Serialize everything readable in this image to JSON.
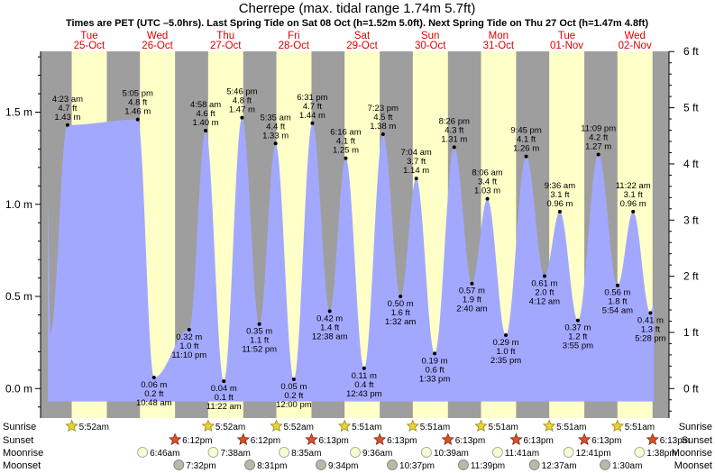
{
  "chart_data": {
    "type": "area",
    "title": "Cherrepe (max. tidal range 1.74m 5.7ft)",
    "subtitle": "Times are PET (UTC –5.0hrs). Last Spring Tide on Sat 08 Oct (h=1.52m 5.0ft). Next Spring Tide on Thu 27 Oct (h=1.47m 4.8ft)",
    "ylabel_left": "m",
    "ylabel_right": "ft",
    "ylim_m": [
      -0.16,
      1.83
    ],
    "left_ticks": [
      {
        "v": 0.0,
        "label": "0.0 m"
      },
      {
        "v": 0.5,
        "label": "0.5 m"
      },
      {
        "v": 1.0,
        "label": "1.0 m"
      },
      {
        "v": 1.5,
        "label": "1.5 m"
      }
    ],
    "right_ticks": [
      {
        "v": 0.0,
        "label": "0 ft"
      },
      {
        "v": 0.3048,
        "label": "1 ft"
      },
      {
        "v": 0.6096,
        "label": "2 ft"
      },
      {
        "v": 0.9144,
        "label": "3 ft"
      },
      {
        "v": 1.2192,
        "label": "4 ft"
      },
      {
        "v": 1.524,
        "label": "5 ft"
      },
      {
        "v": 1.8288,
        "label": "6 ft"
      }
    ],
    "days": [
      {
        "wd": "Tue",
        "date": "25-Oct",
        "t0": 0
      },
      {
        "wd": "Wed",
        "date": "26-Oct",
        "t0": 24
      },
      {
        "wd": "Thu",
        "date": "27-Oct",
        "t0": 48
      },
      {
        "wd": "Fri",
        "date": "28-Oct",
        "t0": 72
      },
      {
        "wd": "Sat",
        "date": "29-Oct",
        "t0": 96
      },
      {
        "wd": "Sun",
        "date": "30-Oct",
        "t0": 120
      },
      {
        "wd": "Mon",
        "date": "31-Oct",
        "t0": 144
      },
      {
        "wd": "Tue",
        "date": "01-Nov",
        "t0": 168
      },
      {
        "wd": "Wed",
        "date": "02-Nov",
        "t0": 192
      }
    ],
    "tides": [
      {
        "type": "high",
        "t": 4.38,
        "time": "4:23 am",
        "ft": "4.7 ft",
        "m": 1.43
      },
      {
        "type": "low",
        "t": 34.8,
        "time": "10:48 am",
        "ft": "0.2 ft",
        "m": 0.06
      },
      {
        "type": "high",
        "t": 29.08,
        "time": "5:05 pm",
        "ft": "4.8 ft",
        "m": 1.46
      },
      {
        "type": "low",
        "t": 47.17,
        "time": "11:10 pm",
        "ft": "1.0 ft",
        "m": 0.32
      },
      {
        "type": "high",
        "t": 52.97,
        "time": "4:58 am",
        "ft": "4.6 ft",
        "m": 1.4
      },
      {
        "type": "low",
        "t": 59.37,
        "time": "11:22 am",
        "ft": "0.1 ft",
        "m": 0.04
      },
      {
        "type": "high",
        "t": 65.77,
        "time": "5:46 pm",
        "ft": "4.8 ft",
        "m": 1.47
      },
      {
        "type": "low",
        "t": 71.87,
        "time": "11:52 pm",
        "ft": "1.1 ft",
        "m": 0.35
      },
      {
        "type": "high",
        "t": 77.58,
        "time": "5:35 am",
        "ft": "4.4 ft",
        "m": 1.33
      },
      {
        "type": "low",
        "t": 84.0,
        "time": "12:00 pm",
        "ft": "0.2 ft",
        "m": 0.05
      },
      {
        "type": "high",
        "t": 90.52,
        "time": "6:31 pm",
        "ft": "4.7 ft",
        "m": 1.44
      },
      {
        "type": "low",
        "t": 96.63,
        "time": "12:38 am",
        "ft": "1.4 ft",
        "m": 0.42
      },
      {
        "type": "high",
        "t": 102.27,
        "time": "6:16 am",
        "ft": "4.1 ft",
        "m": 1.25
      },
      {
        "type": "low",
        "t": 108.72,
        "time": "12:43 pm",
        "ft": "0.4 ft",
        "m": 0.11
      },
      {
        "type": "high",
        "t": 115.38,
        "time": "7:23 pm",
        "ft": "4.5 ft",
        "m": 1.38
      },
      {
        "type": "low",
        "t": 121.53,
        "time": "1:32 am",
        "ft": "1.6 ft",
        "m": 0.5
      },
      {
        "type": "high",
        "t": 127.07,
        "time": "7:04 am",
        "ft": "3.7 ft",
        "m": 1.14
      },
      {
        "type": "low",
        "t": 133.55,
        "time": "1:33 pm",
        "ft": "0.6 ft",
        "m": 0.19
      },
      {
        "type": "high",
        "t": 140.43,
        "time": "8:26 pm",
        "ft": "4.3 ft",
        "m": 1.31
      },
      {
        "type": "low",
        "t": 146.67,
        "time": "2:40 am",
        "ft": "1.9 ft",
        "m": 0.57
      },
      {
        "type": "high",
        "t": 152.1,
        "time": "8:06 am",
        "ft": "3.4 ft",
        "m": 1.03
      },
      {
        "type": "low",
        "t": 158.58,
        "time": "2:35 pm",
        "ft": "1.0 ft",
        "m": 0.29
      },
      {
        "type": "high",
        "t": 165.75,
        "time": "9:45 pm",
        "ft": "4.1 ft",
        "m": 1.26
      },
      {
        "type": "low",
        "t": 172.2,
        "time": "4:12 am",
        "ft": "2.0 ft",
        "m": 0.61
      },
      {
        "type": "high",
        "t": 177.6,
        "time": "9:36 am",
        "ft": "3.1 ft",
        "m": 0.96
      },
      {
        "type": "low",
        "t": 183.92,
        "time": "3:55 pm",
        "ft": "1.2 ft",
        "m": 0.37
      },
      {
        "type": "high",
        "t": 191.15,
        "time": "11:09 pm",
        "ft": "4.2 ft",
        "m": 1.27
      },
      {
        "type": "low",
        "t": 197.9,
        "time": "5:54 am",
        "ft": "1.8 ft",
        "m": 0.56
      },
      {
        "type": "high",
        "t": 203.37,
        "time": "11:22 am",
        "ft": "3.1 ft",
        "m": 0.96
      },
      {
        "type": "low",
        "t": 209.47,
        "time": "5:28 pm",
        "ft": "1.3 ft",
        "m": 0.41
      }
    ],
    "rows": {
      "sunrise": "Sunrise",
      "sunset": "Sunset",
      "moonrise": "Moonrise",
      "moonset": "Moonset"
    },
    "sunrise": [
      {
        "t": 5.87,
        "label": "5:52am"
      },
      {
        "t": 53.87,
        "label": "5:52am"
      },
      {
        "t": 77.87,
        "label": "5:52am"
      },
      {
        "t": 101.85,
        "label": "5:51am"
      },
      {
        "t": 125.85,
        "label": "5:51am"
      },
      {
        "t": 149.85,
        "label": "5:51am"
      },
      {
        "t": 173.85,
        "label": "5:51am"
      },
      {
        "t": 197.85,
        "label": "5:51am"
      }
    ],
    "sunset": [
      {
        "t": 42.2,
        "label": "6:12pm"
      },
      {
        "t": 66.2,
        "label": "6:12pm"
      },
      {
        "t": 90.22,
        "label": "6:13pm"
      },
      {
        "t": 114.22,
        "label": "6:13pm"
      },
      {
        "t": 138.22,
        "label": "6:13pm"
      },
      {
        "t": 162.22,
        "label": "6:13pm"
      },
      {
        "t": 186.22,
        "label": "6:13pm"
      },
      {
        "t": 210.22,
        "label": "6:13pm"
      }
    ],
    "moonrise": [
      {
        "t": 30.77,
        "label": "6:46am"
      },
      {
        "t": 55.63,
        "label": "7:38am"
      },
      {
        "t": 80.58,
        "label": "8:35am"
      },
      {
        "t": 105.6,
        "label": "9:36am"
      },
      {
        "t": 130.65,
        "label": "10:39am"
      },
      {
        "t": 155.68,
        "label": "11:41am"
      },
      {
        "t": 180.68,
        "label": "12:41pm"
      },
      {
        "t": 205.63,
        "label": "1:38pm"
      }
    ],
    "moonset": [
      {
        "t": 43.53,
        "label": "7:32pm"
      },
      {
        "t": 68.52,
        "label": "8:31pm"
      },
      {
        "t": 93.57,
        "label": "9:34pm"
      },
      {
        "t": 118.62,
        "label": "10:37pm"
      },
      {
        "t": 143.65,
        "label": "11:39pm"
      },
      {
        "t": 168.62,
        "label": "12:37am"
      },
      {
        "t": 193.5,
        "label": "1:30am"
      }
    ]
  }
}
